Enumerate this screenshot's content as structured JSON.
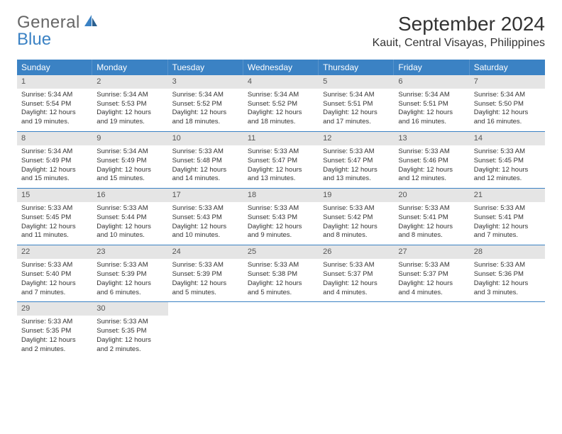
{
  "logo": {
    "text1": "General",
    "text2": "Blue"
  },
  "title": "September 2024",
  "location": "Kauit, Central Visayas, Philippines",
  "colors": {
    "header_bg": "#3b82c4",
    "header_text": "#ffffff",
    "daynum_bg": "#e5e5e5",
    "row_border": "#3b82c4",
    "text": "#333333",
    "logo_gray": "#666666",
    "logo_blue": "#3b82c4"
  },
  "weekdays": [
    "Sunday",
    "Monday",
    "Tuesday",
    "Wednesday",
    "Thursday",
    "Friday",
    "Saturday"
  ],
  "weeks": [
    [
      {
        "n": "1",
        "sr": "Sunrise: 5:34 AM",
        "ss": "Sunset: 5:54 PM",
        "d1": "Daylight: 12 hours",
        "d2": "and 19 minutes."
      },
      {
        "n": "2",
        "sr": "Sunrise: 5:34 AM",
        "ss": "Sunset: 5:53 PM",
        "d1": "Daylight: 12 hours",
        "d2": "and 19 minutes."
      },
      {
        "n": "3",
        "sr": "Sunrise: 5:34 AM",
        "ss": "Sunset: 5:52 PM",
        "d1": "Daylight: 12 hours",
        "d2": "and 18 minutes."
      },
      {
        "n": "4",
        "sr": "Sunrise: 5:34 AM",
        "ss": "Sunset: 5:52 PM",
        "d1": "Daylight: 12 hours",
        "d2": "and 18 minutes."
      },
      {
        "n": "5",
        "sr": "Sunrise: 5:34 AM",
        "ss": "Sunset: 5:51 PM",
        "d1": "Daylight: 12 hours",
        "d2": "and 17 minutes."
      },
      {
        "n": "6",
        "sr": "Sunrise: 5:34 AM",
        "ss": "Sunset: 5:51 PM",
        "d1": "Daylight: 12 hours",
        "d2": "and 16 minutes."
      },
      {
        "n": "7",
        "sr": "Sunrise: 5:34 AM",
        "ss": "Sunset: 5:50 PM",
        "d1": "Daylight: 12 hours",
        "d2": "and 16 minutes."
      }
    ],
    [
      {
        "n": "8",
        "sr": "Sunrise: 5:34 AM",
        "ss": "Sunset: 5:49 PM",
        "d1": "Daylight: 12 hours",
        "d2": "and 15 minutes."
      },
      {
        "n": "9",
        "sr": "Sunrise: 5:34 AM",
        "ss": "Sunset: 5:49 PM",
        "d1": "Daylight: 12 hours",
        "d2": "and 15 minutes."
      },
      {
        "n": "10",
        "sr": "Sunrise: 5:33 AM",
        "ss": "Sunset: 5:48 PM",
        "d1": "Daylight: 12 hours",
        "d2": "and 14 minutes."
      },
      {
        "n": "11",
        "sr": "Sunrise: 5:33 AM",
        "ss": "Sunset: 5:47 PM",
        "d1": "Daylight: 12 hours",
        "d2": "and 13 minutes."
      },
      {
        "n": "12",
        "sr": "Sunrise: 5:33 AM",
        "ss": "Sunset: 5:47 PM",
        "d1": "Daylight: 12 hours",
        "d2": "and 13 minutes."
      },
      {
        "n": "13",
        "sr": "Sunrise: 5:33 AM",
        "ss": "Sunset: 5:46 PM",
        "d1": "Daylight: 12 hours",
        "d2": "and 12 minutes."
      },
      {
        "n": "14",
        "sr": "Sunrise: 5:33 AM",
        "ss": "Sunset: 5:45 PM",
        "d1": "Daylight: 12 hours",
        "d2": "and 12 minutes."
      }
    ],
    [
      {
        "n": "15",
        "sr": "Sunrise: 5:33 AM",
        "ss": "Sunset: 5:45 PM",
        "d1": "Daylight: 12 hours",
        "d2": "and 11 minutes."
      },
      {
        "n": "16",
        "sr": "Sunrise: 5:33 AM",
        "ss": "Sunset: 5:44 PM",
        "d1": "Daylight: 12 hours",
        "d2": "and 10 minutes."
      },
      {
        "n": "17",
        "sr": "Sunrise: 5:33 AM",
        "ss": "Sunset: 5:43 PM",
        "d1": "Daylight: 12 hours",
        "d2": "and 10 minutes."
      },
      {
        "n": "18",
        "sr": "Sunrise: 5:33 AM",
        "ss": "Sunset: 5:43 PM",
        "d1": "Daylight: 12 hours",
        "d2": "and 9 minutes."
      },
      {
        "n": "19",
        "sr": "Sunrise: 5:33 AM",
        "ss": "Sunset: 5:42 PM",
        "d1": "Daylight: 12 hours",
        "d2": "and 8 minutes."
      },
      {
        "n": "20",
        "sr": "Sunrise: 5:33 AM",
        "ss": "Sunset: 5:41 PM",
        "d1": "Daylight: 12 hours",
        "d2": "and 8 minutes."
      },
      {
        "n": "21",
        "sr": "Sunrise: 5:33 AM",
        "ss": "Sunset: 5:41 PM",
        "d1": "Daylight: 12 hours",
        "d2": "and 7 minutes."
      }
    ],
    [
      {
        "n": "22",
        "sr": "Sunrise: 5:33 AM",
        "ss": "Sunset: 5:40 PM",
        "d1": "Daylight: 12 hours",
        "d2": "and 7 minutes."
      },
      {
        "n": "23",
        "sr": "Sunrise: 5:33 AM",
        "ss": "Sunset: 5:39 PM",
        "d1": "Daylight: 12 hours",
        "d2": "and 6 minutes."
      },
      {
        "n": "24",
        "sr": "Sunrise: 5:33 AM",
        "ss": "Sunset: 5:39 PM",
        "d1": "Daylight: 12 hours",
        "d2": "and 5 minutes."
      },
      {
        "n": "25",
        "sr": "Sunrise: 5:33 AM",
        "ss": "Sunset: 5:38 PM",
        "d1": "Daylight: 12 hours",
        "d2": "and 5 minutes."
      },
      {
        "n": "26",
        "sr": "Sunrise: 5:33 AM",
        "ss": "Sunset: 5:37 PM",
        "d1": "Daylight: 12 hours",
        "d2": "and 4 minutes."
      },
      {
        "n": "27",
        "sr": "Sunrise: 5:33 AM",
        "ss": "Sunset: 5:37 PM",
        "d1": "Daylight: 12 hours",
        "d2": "and 4 minutes."
      },
      {
        "n": "28",
        "sr": "Sunrise: 5:33 AM",
        "ss": "Sunset: 5:36 PM",
        "d1": "Daylight: 12 hours",
        "d2": "and 3 minutes."
      }
    ],
    [
      {
        "n": "29",
        "sr": "Sunrise: 5:33 AM",
        "ss": "Sunset: 5:35 PM",
        "d1": "Daylight: 12 hours",
        "d2": "and 2 minutes."
      },
      {
        "n": "30",
        "sr": "Sunrise: 5:33 AM",
        "ss": "Sunset: 5:35 PM",
        "d1": "Daylight: 12 hours",
        "d2": "and 2 minutes."
      },
      {
        "empty": true
      },
      {
        "empty": true
      },
      {
        "empty": true
      },
      {
        "empty": true
      },
      {
        "empty": true
      }
    ]
  ]
}
